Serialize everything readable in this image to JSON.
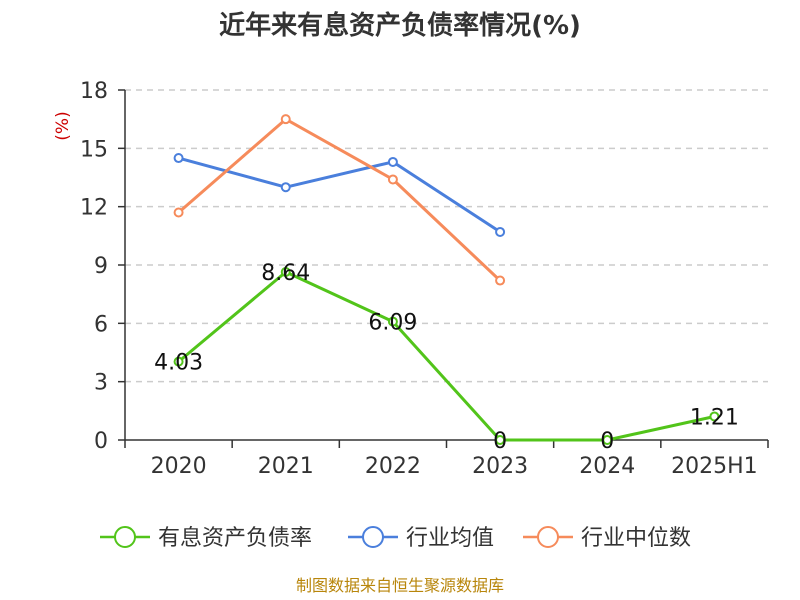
{
  "chart_data": {
    "type": "line",
    "title": "近年来有息资产负债率情况(%)",
    "ylabel": "(%)",
    "categories": [
      "2020",
      "2021",
      "2022",
      "2023",
      "2024",
      "2025H1"
    ],
    "ylim": [
      0,
      18
    ],
    "yticks": [
      0,
      3,
      6,
      9,
      12,
      15,
      18
    ],
    "grid": true,
    "legend_position": "bottom",
    "series": [
      {
        "name": "有息资产负债率",
        "color": "#52c41a",
        "values": [
          4.03,
          8.64,
          6.09,
          0,
          0,
          1.21
        ],
        "labels": [
          "4.03",
          "8.64",
          "6.09",
          "0",
          "0",
          "1.21"
        ]
      },
      {
        "name": "行业均值",
        "color": "#4a7fdc",
        "values": [
          14.5,
          13.0,
          14.3,
          10.7,
          null,
          null
        ]
      },
      {
        "name": "行业中位数",
        "color": "#f68b5b",
        "values": [
          11.7,
          16.5,
          13.4,
          8.2,
          null,
          null
        ]
      }
    ]
  },
  "source_text": "制图数据来自恒生聚源数据库"
}
